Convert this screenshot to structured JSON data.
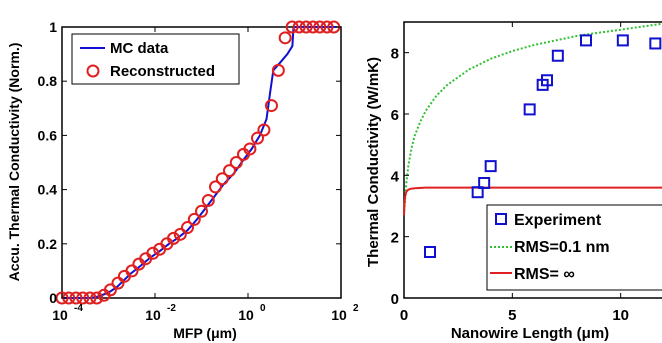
{
  "chart_data": [
    {
      "type": "line",
      "xlabel": "MFP (μm)",
      "ylabel": "Accu. Thermal Conductivity (Norm.)",
      "xscale": "log",
      "xlim": [
        0.0001,
        100
      ],
      "ylim": [
        0,
        1
      ],
      "x_ticks": [
        {
          "value": 0.0001,
          "base": "10",
          "exp": "-4"
        },
        {
          "value": 0.01,
          "base": "10",
          "exp": "-2"
        },
        {
          "value": 1,
          "base": "10",
          "exp": "0"
        },
        {
          "value": 100,
          "base": "10",
          "exp": "2"
        }
      ],
      "y_ticks": [
        "0",
        "0.2",
        "0.4",
        "0.6",
        "0.8",
        "1"
      ],
      "legend_position": "top-left",
      "series": [
        {
          "name": "MC data",
          "style": "line",
          "color": "#1010d0",
          "x": [
            0.0001,
            0.0002,
            0.0004,
            0.0006,
            0.001,
            0.0015,
            0.002,
            0.003,
            0.005,
            0.008,
            0.012,
            0.02,
            0.03,
            0.05,
            0.08,
            0.12,
            0.2,
            0.3,
            0.5,
            0.8,
            1.2,
            1.8,
            2.5,
            3.0,
            3.5,
            5,
            7,
            9,
            9.5,
            15,
            30,
            60,
            80
          ],
          "y": [
            0,
            0,
            0,
            0.005,
            0.02,
            0.04,
            0.06,
            0.09,
            0.12,
            0.15,
            0.17,
            0.2,
            0.22,
            0.25,
            0.29,
            0.33,
            0.38,
            0.42,
            0.46,
            0.51,
            0.55,
            0.6,
            0.66,
            0.76,
            0.84,
            0.87,
            0.9,
            0.93,
            1,
            1,
            1,
            1,
            1
          ]
        },
        {
          "name": "Reconstructed",
          "style": "markers",
          "marker": "circle",
          "color": "#e02020",
          "x": [
            0.0001,
            0.00014,
            0.0002,
            0.00028,
            0.0004,
            0.00056,
            0.0008,
            0.0011,
            0.0016,
            0.0022,
            0.0032,
            0.0045,
            0.0063,
            0.009,
            0.0126,
            0.018,
            0.025,
            0.035,
            0.05,
            0.07,
            0.1,
            0.14,
            0.2,
            0.28,
            0.4,
            0.56,
            0.8,
            1.1,
            1.6,
            2.2,
            3.2,
            4.5,
            6.3,
            8.9,
            12.6,
            17.8,
            25,
            35,
            50,
            70
          ],
          "y": [
            0,
            0,
            0,
            0,
            0,
            0,
            0.01,
            0.03,
            0.055,
            0.08,
            0.1,
            0.125,
            0.145,
            0.165,
            0.18,
            0.2,
            0.22,
            0.235,
            0.26,
            0.29,
            0.32,
            0.36,
            0.41,
            0.44,
            0.47,
            0.5,
            0.53,
            0.55,
            0.59,
            0.62,
            0.71,
            0.84,
            0.96,
            1,
            1,
            1,
            1,
            1,
            1,
            1
          ]
        }
      ]
    },
    {
      "type": "line",
      "xlabel": "Nanowire Length (μm)",
      "ylabel": "Thermal Conductivity (W/mK)",
      "xlim": [
        0,
        12
      ],
      "ylim": [
        0,
        9
      ],
      "x_ticks": [
        "0",
        "5",
        "10"
      ],
      "y_ticks": [
        "0",
        "2",
        "4",
        "6",
        "8"
      ],
      "legend_position": "bottom-right",
      "series": [
        {
          "name": "Experiment",
          "style": "markers",
          "marker": "square",
          "color": "#1010d0",
          "x": [
            1.2,
            3.4,
            3.7,
            4.0,
            5.8,
            6.4,
            6.6,
            7.1,
            8.4,
            10.1,
            11.6
          ],
          "y": [
            1.5,
            3.45,
            3.75,
            4.3,
            6.15,
            6.95,
            7.1,
            7.9,
            8.4,
            8.4,
            8.3
          ]
        },
        {
          "name": "RMS=0.1 nm",
          "style": "dotted",
          "color": "#30c030",
          "x": [
            0,
            0.05,
            0.1,
            0.2,
            0.35,
            0.5,
            0.75,
            1,
            1.5,
            2,
            3,
            4,
            5,
            6,
            7,
            8,
            9,
            10,
            11,
            12
          ],
          "y": [
            2.7,
            3.2,
            3.7,
            4.3,
            4.9,
            5.3,
            5.75,
            6.1,
            6.6,
            6.95,
            7.45,
            7.8,
            8.05,
            8.25,
            8.4,
            8.55,
            8.65,
            8.75,
            8.85,
            8.95
          ]
        },
        {
          "name": "RMS= ∞",
          "style": "line",
          "color": "#e02020",
          "x": [
            0,
            0.02,
            0.05,
            0.1,
            0.15,
            0.2,
            0.3,
            0.5,
            0.8,
            1,
            2,
            4,
            6,
            8,
            10,
            12
          ],
          "y": [
            2.7,
            3.05,
            3.3,
            3.45,
            3.5,
            3.53,
            3.56,
            3.58,
            3.59,
            3.6,
            3.6,
            3.6,
            3.6,
            3.6,
            3.6,
            3.6
          ]
        }
      ]
    }
  ]
}
